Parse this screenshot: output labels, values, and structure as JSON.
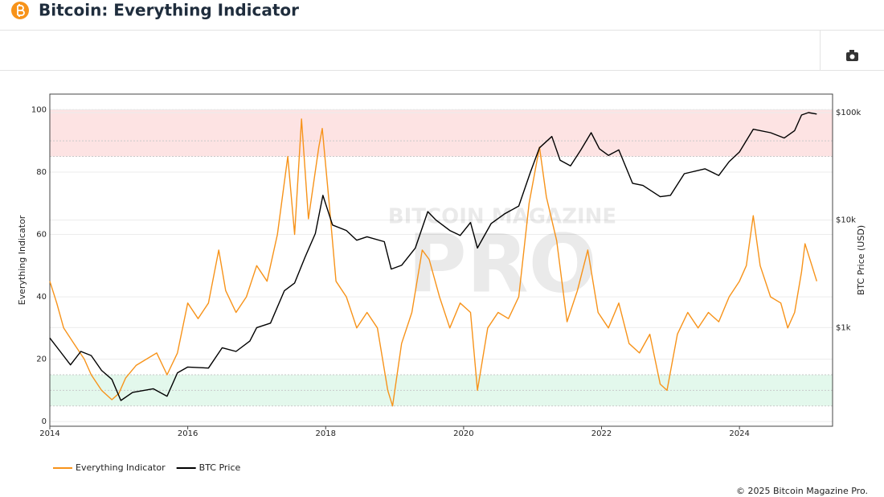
{
  "header": {
    "title": "Bitcoin: Everything Indicator"
  },
  "footer": "© 2025 Bitcoin Magazine Pro.",
  "chart_data": {
    "type": "line",
    "watermark": [
      "BITCOIN MAGAZINE",
      "PRO"
    ],
    "y_label": "Everything Indicator",
    "y2_label": "BTC Price (USD)",
    "xlim": [
      2014,
      2025.35
    ],
    "xticks": [
      2014,
      2016,
      2018,
      2020,
      2022,
      2024
    ],
    "ylim": [
      -1.5,
      105
    ],
    "yticks": [
      0,
      20,
      40,
      60,
      80,
      100
    ],
    "y2lim": [
      121,
      148600
    ],
    "y2_log": true,
    "y2ticks": [
      {
        "value": 1000,
        "label": "$1k"
      },
      {
        "value": 10000,
        "label": "$10k"
      },
      {
        "value": 100000,
        "label": "$100k"
      }
    ],
    "grid": true,
    "zones": [
      {
        "from": 85,
        "to": 100,
        "mid": 90,
        "color": "#fde3e3"
      },
      {
        "from": 5,
        "to": 15,
        "mid": 10,
        "color": "#e3f8ec"
      }
    ],
    "legend": "bottom-left",
    "series": [
      {
        "name": "Everything Indicator",
        "color": "#f7931a",
        "axis": "y",
        "x": [
          2014.0,
          2014.1,
          2014.2,
          2014.35,
          2014.5,
          2014.6,
          2014.75,
          2014.9,
          2015.0,
          2015.1,
          2015.25,
          2015.4,
          2015.55,
          2015.7,
          2015.85,
          2016.0,
          2016.15,
          2016.3,
          2016.45,
          2016.55,
          2016.7,
          2016.85,
          2017.0,
          2017.15,
          2017.3,
          2017.45,
          2017.55,
          2017.65,
          2017.75,
          2017.9,
          2017.95,
          2018.05,
          2018.15,
          2018.3,
          2018.45,
          2018.6,
          2018.75,
          2018.9,
          2018.97,
          2019.1,
          2019.25,
          2019.4,
          2019.5,
          2019.65,
          2019.8,
          2019.95,
          2020.1,
          2020.2,
          2020.35,
          2020.5,
          2020.65,
          2020.8,
          2020.95,
          2021.1,
          2021.2,
          2021.35,
          2021.5,
          2021.65,
          2021.8,
          2021.95,
          2022.1,
          2022.25,
          2022.4,
          2022.55,
          2022.7,
          2022.85,
          2022.95,
          2023.1,
          2023.25,
          2023.4,
          2023.55,
          2023.7,
          2023.85,
          2024.0,
          2024.1,
          2024.2,
          2024.3,
          2024.45,
          2024.6,
          2024.7,
          2024.8,
          2024.9,
          2024.95,
          2025.05,
          2025.12
        ],
        "values": [
          45,
          38,
          30,
          25,
          20,
          15,
          10,
          7,
          9,
          14,
          18,
          20,
          22,
          15,
          22,
          38,
          33,
          38,
          55,
          42,
          35,
          40,
          50,
          45,
          60,
          85,
          60,
          97,
          65,
          88,
          94,
          70,
          45,
          40,
          30,
          35,
          30,
          10,
          5,
          25,
          35,
          55,
          52,
          40,
          30,
          38,
          35,
          10,
          30,
          35,
          33,
          40,
          70,
          88,
          72,
          58,
          32,
          42,
          55,
          35,
          30,
          38,
          25,
          22,
          28,
          12,
          10,
          28,
          35,
          30,
          35,
          32,
          40,
          45,
          50,
          66,
          50,
          40,
          38,
          30,
          35,
          48,
          57,
          50,
          45
        ]
      },
      {
        "name": "BTC Price",
        "color": "#000000",
        "axis": "y2",
        "x": [
          2014.0,
          2014.15,
          2014.3,
          2014.45,
          2014.6,
          2014.75,
          2014.9,
          2015.03,
          2015.2,
          2015.5,
          2015.7,
          2015.85,
          2016.0,
          2016.3,
          2016.5,
          2016.7,
          2016.9,
          2017.0,
          2017.2,
          2017.4,
          2017.55,
          2017.7,
          2017.85,
          2017.96,
          2018.1,
          2018.3,
          2018.45,
          2018.6,
          2018.85,
          2018.95,
          2019.1,
          2019.3,
          2019.48,
          2019.6,
          2019.8,
          2019.95,
          2020.1,
          2020.2,
          2020.4,
          2020.6,
          2020.8,
          2020.97,
          2021.1,
          2021.28,
          2021.4,
          2021.55,
          2021.7,
          2021.85,
          2021.97,
          2022.1,
          2022.25,
          2022.45,
          2022.6,
          2022.85,
          2023.0,
          2023.2,
          2023.5,
          2023.7,
          2023.85,
          2024.0,
          2024.2,
          2024.45,
          2024.65,
          2024.8,
          2024.9,
          2025.0,
          2025.12
        ],
        "values": [
          800,
          600,
          450,
          600,
          550,
          400,
          330,
          210,
          250,
          270,
          230,
          380,
          430,
          420,
          650,
          600,
          750,
          1000,
          1100,
          2200,
          2600,
          4500,
          7500,
          17000,
          9000,
          8000,
          6500,
          7000,
          6300,
          3500,
          3800,
          5500,
          12000,
          10000,
          8000,
          7200,
          9500,
          5500,
          9300,
          11500,
          13500,
          28000,
          47000,
          60000,
          36000,
          32000,
          45000,
          65000,
          46000,
          40000,
          45000,
          22000,
          21000,
          16500,
          17000,
          27000,
          30000,
          26000,
          35000,
          43000,
          70000,
          65000,
          58000,
          68000,
          95000,
          100000,
          97000
        ]
      }
    ]
  }
}
